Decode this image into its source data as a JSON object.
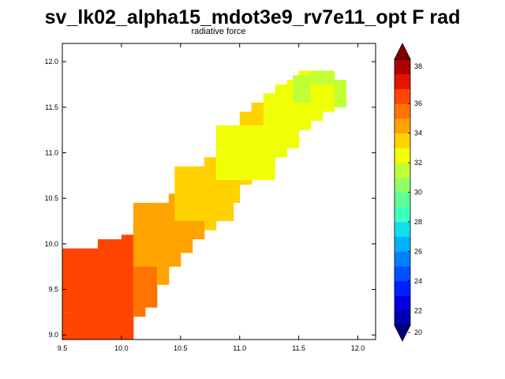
{
  "title": "sv_lk02_alpha15_mdot3e9_rv7e11_opt F rad",
  "chart_data": {
    "type": "heatmap",
    "subtitle": "radiative force",
    "xlim": [
      9.5,
      12.15
    ],
    "ylim": [
      8.95,
      12.2
    ],
    "x_ticks": [
      "9.5",
      "10.0",
      "10.5",
      "11.0",
      "11.5",
      "12.0"
    ],
    "x_tick_values": [
      9.5,
      10.0,
      10.5,
      11.0,
      11.5,
      12.0
    ],
    "y_ticks": [
      "9.0",
      "9.5",
      "10.0",
      "10.5",
      "11.0",
      "11.5",
      "12.0"
    ],
    "y_tick_values": [
      9.0,
      9.5,
      10.0,
      10.5,
      11.0,
      11.5,
      12.0
    ],
    "colorbar": {
      "min": 20,
      "max": 38,
      "step": 1,
      "tick_values": [
        20,
        22,
        24,
        26,
        28,
        30,
        32,
        34,
        36,
        38
      ],
      "tick_labels": [
        "20",
        "22",
        "24",
        "26",
        "28",
        "30",
        "32",
        "34",
        "36",
        "38"
      ],
      "colors": [
        "#00007f",
        "#0000b0",
        "#0000e0",
        "#0020ff",
        "#0050ff",
        "#0080ff",
        "#00b0ff",
        "#10e0ee",
        "#3fffc0",
        "#60ff96",
        "#90ff66",
        "#c0ff36",
        "#f0ff06",
        "#ffd200",
        "#ffa300",
        "#ff7400",
        "#ff4500",
        "#e31500",
        "#b00000",
        "#7f0000"
      ]
    },
    "cell_size": 0.1,
    "columns": [
      {
        "x": 9.5,
        "y0": 8.95,
        "y1": 9.25,
        "value": 36.5
      },
      {
        "x": 9.6,
        "y0": 8.95,
        "y1": 9.6,
        "value": 36
      },
      {
        "x": 9.7,
        "y0": 8.95,
        "y1": 9.85,
        "value": 36
      },
      {
        "x": 9.8,
        "y0": 8.95,
        "y1": 10.05,
        "value": 36
      },
      {
        "x": 9.9,
        "y0": 8.95,
        "y1": 10.05,
        "value": 36
      },
      {
        "x": 10.0,
        "y0": 8.95,
        "y1": 10.1,
        "value": 36
      },
      {
        "x": 10.1,
        "y0": 9.2,
        "y1": 10.2,
        "value": 35
      },
      {
        "x": 10.2,
        "y0": 9.3,
        "y1": 10.3,
        "value": 35
      },
      {
        "x": 10.3,
        "y0": 9.55,
        "y1": 10.45,
        "value": 34.5
      },
      {
        "x": 10.4,
        "y0": 9.75,
        "y1": 10.55,
        "value": 34.5
      },
      {
        "x": 10.5,
        "y0": 9.9,
        "y1": 10.7,
        "value": 34
      },
      {
        "x": 10.6,
        "y0": 10.05,
        "y1": 10.85,
        "value": 34
      },
      {
        "x": 10.7,
        "y0": 10.15,
        "y1": 10.95,
        "value": 33.5
      },
      {
        "x": 10.8,
        "y0": 10.25,
        "y1": 11.05,
        "value": 33
      },
      {
        "x": 10.9,
        "y0": 10.45,
        "y1": 11.3,
        "value": 33
      },
      {
        "x": 11.0,
        "y0": 10.65,
        "y1": 11.45,
        "value": 33
      },
      {
        "x": 11.1,
        "y0": 10.75,
        "y1": 11.55,
        "value": 33
      },
      {
        "x": 11.2,
        "y0": 10.85,
        "y1": 11.65,
        "value": 32.5
      },
      {
        "x": 11.3,
        "y0": 10.95,
        "y1": 11.75,
        "value": 32.5
      },
      {
        "x": 11.4,
        "y0": 11.05,
        "y1": 11.8,
        "value": 32.5
      },
      {
        "x": 11.5,
        "y0": 11.25,
        "y1": 11.9,
        "value": 32.5
      },
      {
        "x": 11.6,
        "y0": 11.35,
        "y1": 11.9,
        "value": 32.5
      },
      {
        "x": 11.7,
        "y0": 11.45,
        "y1": 11.9,
        "value": 32.5
      },
      {
        "x": 11.8,
        "y0": 11.5,
        "y1": 11.8,
        "value": 31.5
      }
    ],
    "overlays": [
      {
        "x": 9.5,
        "y": 9.25,
        "w": 0.5,
        "h": 0.7,
        "value": 36
      },
      {
        "x": 10.1,
        "y": 9.75,
        "w": 0.35,
        "h": 0.7,
        "value": 34
      },
      {
        "x": 10.45,
        "y": 10.25,
        "w": 0.5,
        "h": 0.6,
        "value": 33.5
      },
      {
        "x": 10.8,
        "y": 10.7,
        "w": 0.5,
        "h": 0.6,
        "value": 32.5
      },
      {
        "x": 11.45,
        "y": 11.55,
        "w": 0.15,
        "h": 0.3,
        "value": 31.5
      },
      {
        "x": 11.6,
        "y": 11.75,
        "w": 0.2,
        "h": 0.15,
        "value": 31.5
      }
    ]
  }
}
